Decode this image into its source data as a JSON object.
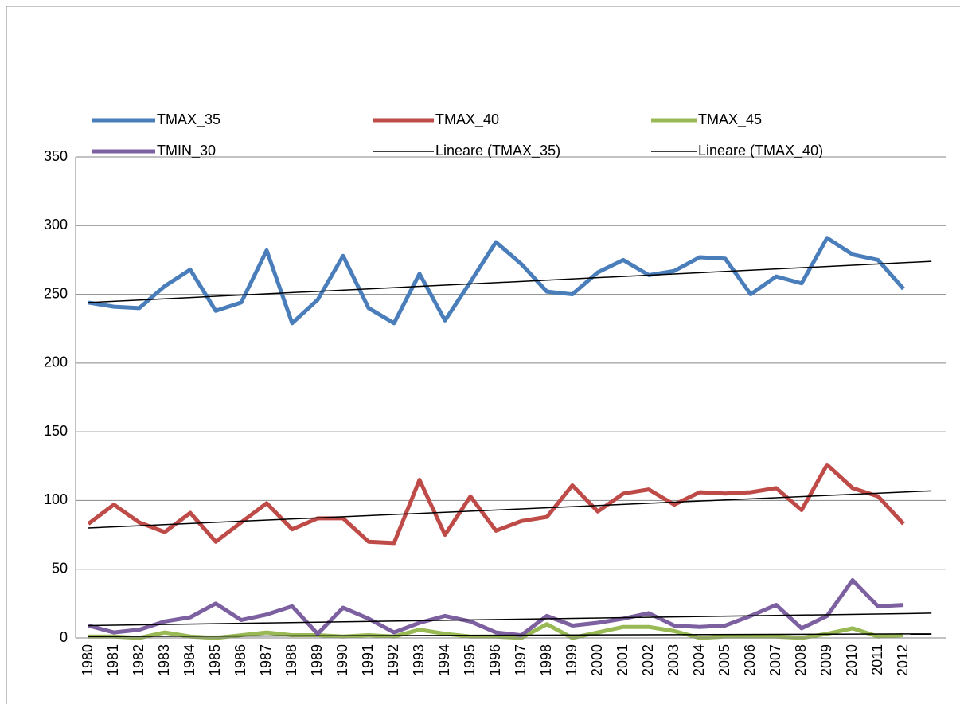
{
  "chart_data": {
    "type": "line",
    "categories": [
      "1980",
      "1981",
      "1982",
      "1983",
      "1984",
      "1985",
      "1986",
      "1987",
      "1988",
      "1989",
      "1990",
      "1991",
      "1992",
      "1993",
      "1994",
      "1995",
      "1996",
      "1997",
      "1998",
      "1999",
      "2000",
      "2001",
      "2002",
      "2003",
      "2004",
      "2005",
      "2006",
      "2007",
      "2008",
      "2009",
      "2010",
      "2011",
      "2012"
    ],
    "series": [
      {
        "name": "TMAX_35",
        "color": "#4a7ebb",
        "values": [
          244,
          241,
          240,
          256,
          268,
          238,
          244,
          282,
          229,
          246,
          278,
          240,
          229,
          265,
          231,
          259,
          288,
          272,
          252,
          250,
          266,
          275,
          264,
          267,
          277,
          276,
          250,
          263,
          258,
          291,
          279,
          275,
          254
        ]
      },
      {
        "name": "TMAX_40",
        "color": "#be4b48",
        "values": [
          83,
          97,
          84,
          77,
          91,
          70,
          84,
          98,
          79,
          87,
          87,
          70,
          69,
          115,
          75,
          103,
          78,
          85,
          88,
          111,
          92,
          105,
          108,
          97,
          106,
          105,
          106,
          109,
          93,
          126,
          109,
          103,
          83
        ]
      },
      {
        "name": "TMAX_45",
        "color": "#98b954",
        "values": [
          1,
          1,
          0,
          4,
          1,
          0,
          2,
          4,
          2,
          2,
          1,
          2,
          1,
          6,
          3,
          1,
          1,
          0,
          10,
          0,
          4,
          8,
          8,
          5,
          0,
          1,
          1,
          1,
          0,
          3,
          7,
          1,
          2
        ]
      },
      {
        "name": "TMIN_30",
        "color": "#7d60a0",
        "values": [
          9,
          4,
          6,
          12,
          15,
          25,
          13,
          17,
          23,
          3,
          22,
          14,
          4,
          11,
          16,
          12,
          4,
          2,
          16,
          9,
          11,
          14,
          18,
          9,
          8,
          9,
          16,
          24,
          7,
          16,
          42,
          23,
          24
        ]
      }
    ],
    "trendlines": [
      {
        "name": "Lineare (TMAX_35)",
        "color": "#000000",
        "values": [
          244,
          274
        ]
      },
      {
        "name": "Lineare (TMAX_40)",
        "color": "#000000",
        "values": [
          80,
          107
        ]
      },
      {
        "color": "#000000",
        "values": [
          9,
          18
        ]
      },
      {
        "color": "#000000",
        "values": [
          1,
          3
        ]
      }
    ],
    "ylim": [
      0,
      350
    ],
    "yticks": [
      0,
      50,
      100,
      150,
      200,
      250,
      300,
      350
    ],
    "grid": true
  }
}
